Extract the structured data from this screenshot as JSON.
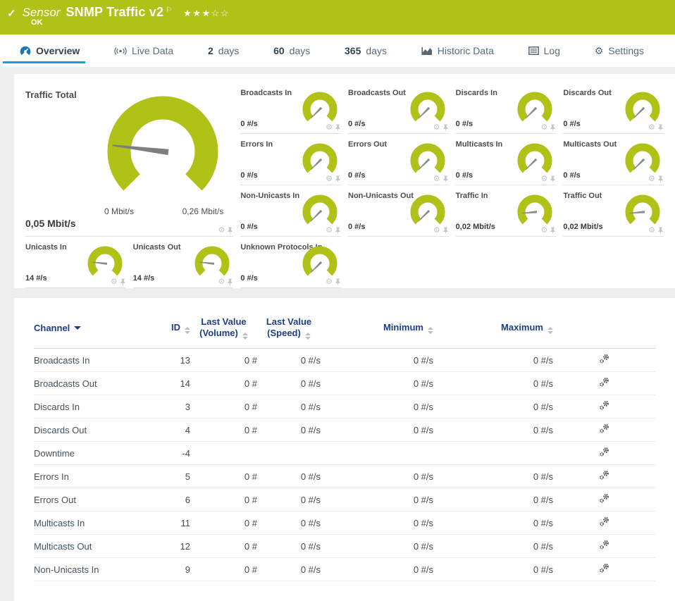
{
  "colors": {
    "header_green": "#b0c117",
    "gauge_green": "#b0c117",
    "active_tab_blue": "#1e9cd6",
    "table_header_navy": "#1c3d87",
    "needle_gray": "#7f7f7f"
  },
  "icons": {
    "check": "✓",
    "flag": "⚐",
    "star_filled": "★",
    "star_empty": "☆",
    "gear": "⚙"
  },
  "header": {
    "kind_label": "Sensor",
    "title": "SNMP Traffic v2",
    "status": "OK",
    "rating": {
      "filled": 3,
      "total": 5
    }
  },
  "tabs": [
    {
      "label": "Overview",
      "icon": "gauge",
      "active": true
    },
    {
      "label": "Live Data",
      "icon": "live",
      "active": false
    },
    {
      "num": "2",
      "label": "days",
      "active": false
    },
    {
      "num": "60",
      "label": "days",
      "active": false
    },
    {
      "num": "365",
      "label": "days",
      "active": false
    },
    {
      "label": "Historic Data",
      "icon": "chart",
      "active": false
    },
    {
      "label": "Log",
      "icon": "log",
      "active": false
    },
    {
      "label": "Settings",
      "icon": "gear",
      "active": false
    }
  ],
  "gauges": {
    "main": {
      "title": "Traffic Total",
      "value": "0,05 Mbit/s",
      "scale_min": "0 Mbit/s",
      "scale_max": "0,26 Mbit/s",
      "needle_deg": -83
    },
    "tiles": [
      {
        "title": "Broadcasts In",
        "value": "0 #/s",
        "needle_deg": -135
      },
      {
        "title": "Broadcasts Out",
        "value": "0 #/s",
        "needle_deg": -135
      },
      {
        "title": "Discards In",
        "value": "0 #/s",
        "needle_deg": -135
      },
      {
        "title": "Discards Out",
        "value": "0 #/s",
        "needle_deg": -135
      },
      {
        "title": "Errors In",
        "value": "0 #/s",
        "needle_deg": -135
      },
      {
        "title": "Errors Out",
        "value": "0 #/s",
        "needle_deg": -135
      },
      {
        "title": "Multicasts In",
        "value": "0 #/s",
        "needle_deg": -135
      },
      {
        "title": "Multicasts Out",
        "value": "0 #/s",
        "needle_deg": -135
      },
      {
        "title": "Non-Unicasts In",
        "value": "0 #/s",
        "needle_deg": -135
      },
      {
        "title": "Non-Unicasts Out",
        "value": "0 #/s",
        "needle_deg": -135
      },
      {
        "title": "Traffic In",
        "value": "0,02 Mbit/s",
        "needle_deg": -95
      },
      {
        "title": "Traffic Out",
        "value": "0,02 Mbit/s",
        "needle_deg": -95
      },
      {
        "title": "Unicasts In",
        "value": "14 #/s",
        "needle_deg": -84
      },
      {
        "title": "Unicasts Out",
        "value": "14 #/s",
        "needle_deg": -84
      },
      {
        "title": "Unknown Protocols In",
        "value": "0 #/s",
        "needle_deg": -135
      }
    ]
  },
  "table": {
    "columns": [
      {
        "label": "Channel",
        "sorted": true
      },
      {
        "label": "ID",
        "sorted": false
      },
      {
        "label": "Last Value (Volume)",
        "sorted": false
      },
      {
        "label": "Last Value (Speed)",
        "sorted": false
      },
      {
        "label": "Minimum",
        "sorted": false
      },
      {
        "label": "Maximum",
        "sorted": false
      }
    ],
    "rows": [
      {
        "channel": "Broadcasts In",
        "id": "13",
        "volume": "0 #",
        "speed": "0 #/s",
        "min": "0 #/s",
        "max": "0 #/s"
      },
      {
        "channel": "Broadcasts Out",
        "id": "14",
        "volume": "0 #",
        "speed": "0 #/s",
        "min": "0 #/s",
        "max": "0 #/s"
      },
      {
        "channel": "Discards In",
        "id": "3",
        "volume": "0 #",
        "speed": "0 #/s",
        "min": "0 #/s",
        "max": "0 #/s"
      },
      {
        "channel": "Discards Out",
        "id": "4",
        "volume": "0 #",
        "speed": "0 #/s",
        "min": "0 #/s",
        "max": "0 #/s"
      },
      {
        "channel": "Downtime",
        "id": "-4",
        "volume": "",
        "speed": "",
        "min": "",
        "max": ""
      },
      {
        "channel": "Errors In",
        "id": "5",
        "volume": "0 #",
        "speed": "0 #/s",
        "min": "0 #/s",
        "max": "0 #/s"
      },
      {
        "channel": "Errors Out",
        "id": "6",
        "volume": "0 #",
        "speed": "0 #/s",
        "min": "0 #/s",
        "max": "0 #/s"
      },
      {
        "channel": "Multicasts In",
        "id": "11",
        "volume": "0 #",
        "speed": "0 #/s",
        "min": "0 #/s",
        "max": "0 #/s"
      },
      {
        "channel": "Multicasts Out",
        "id": "12",
        "volume": "0 #",
        "speed": "0 #/s",
        "min": "0 #/s",
        "max": "0 #/s"
      },
      {
        "channel": "Non-Unicasts In",
        "id": "9",
        "volume": "0 #",
        "speed": "0 #/s",
        "min": "0 #/s",
        "max": "0 #/s"
      }
    ]
  }
}
